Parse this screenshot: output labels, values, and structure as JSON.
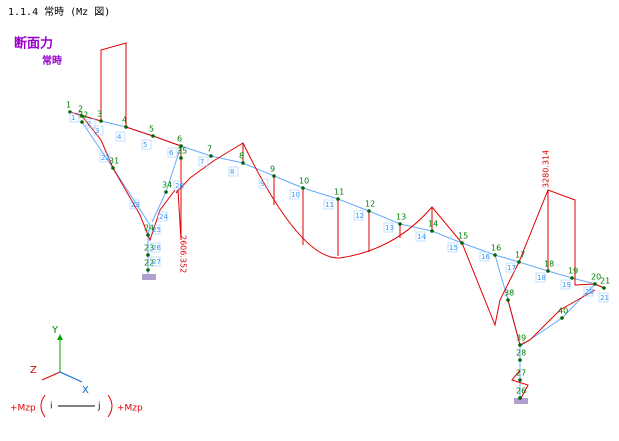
{
  "header": {
    "title": "1.1.4 常時 (Mz 図)"
  },
  "legend": {
    "title": "断面力",
    "case": "常時"
  },
  "nodes": [
    "1",
    "2",
    "3",
    "4",
    "5",
    "6",
    "7",
    "8",
    "9",
    "10",
    "11",
    "12",
    "13",
    "14",
    "15",
    "16",
    "17",
    "18",
    "19",
    "20",
    "21",
    "32",
    "31",
    "34",
    "35",
    "24",
    "23",
    "22",
    "38",
    "39",
    "40",
    "26",
    "27",
    "28"
  ],
  "members": [
    "1",
    "2",
    "3",
    "4",
    "5",
    "6",
    "7",
    "8",
    "9",
    "10",
    "11",
    "12",
    "13",
    "14",
    "15",
    "16",
    "17",
    "18",
    "19",
    "20",
    "21",
    "22",
    "23",
    "24",
    "25",
    "26",
    "27",
    "28"
  ],
  "moment_labels": [
    "2606.352",
    "3280.314"
  ],
  "axes": {
    "y": "Y",
    "z": "Z",
    "x": "X"
  },
  "sign": {
    "left": "+Mzp",
    "i": "i",
    "j": "j",
    "right": "+Mzp"
  }
}
